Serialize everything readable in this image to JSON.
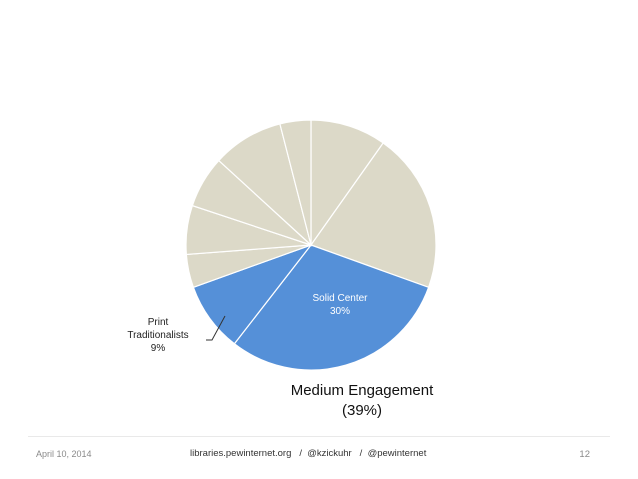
{
  "chart_data": {
    "type": "pie",
    "slices": [
      {
        "value": 9.8,
        "color": "#dcd9c8",
        "label": "",
        "value_label": ""
      },
      {
        "value": 20.7,
        "color": "#dcd9c8",
        "label": "",
        "value_label": ""
      },
      {
        "value": 30,
        "color": "#5590d8",
        "label": "Solid Center",
        "value_label": "30%"
      },
      {
        "value": 9,
        "color": "#5590d8",
        "label": "Print Traditionalists",
        "value_label": "9%"
      },
      {
        "value": 4.3,
        "color": "#dcd9c8",
        "label": "",
        "value_label": ""
      },
      {
        "value": 6.3,
        "color": "#dcd9c8",
        "label": "",
        "value_label": ""
      },
      {
        "value": 6.7,
        "color": "#dcd9c8",
        "label": "",
        "value_label": ""
      },
      {
        "value": 9.2,
        "color": "#dcd9c8",
        "label": "",
        "value_label": ""
      },
      {
        "value": 4,
        "color": "#dcd9c8",
        "label": "",
        "value_label": ""
      }
    ],
    "start": "12 o'clock, clockwise",
    "group_label": {
      "line1": "Medium Engagement",
      "line2": "(39%)"
    }
  },
  "footer": {
    "date": "April 10, 2014",
    "site": "libraries.pewinternet.org",
    "sep1": "/",
    "handle1": "@kzickuhr",
    "sep2": "/",
    "handle2": "@pewinternet",
    "page": "12"
  }
}
